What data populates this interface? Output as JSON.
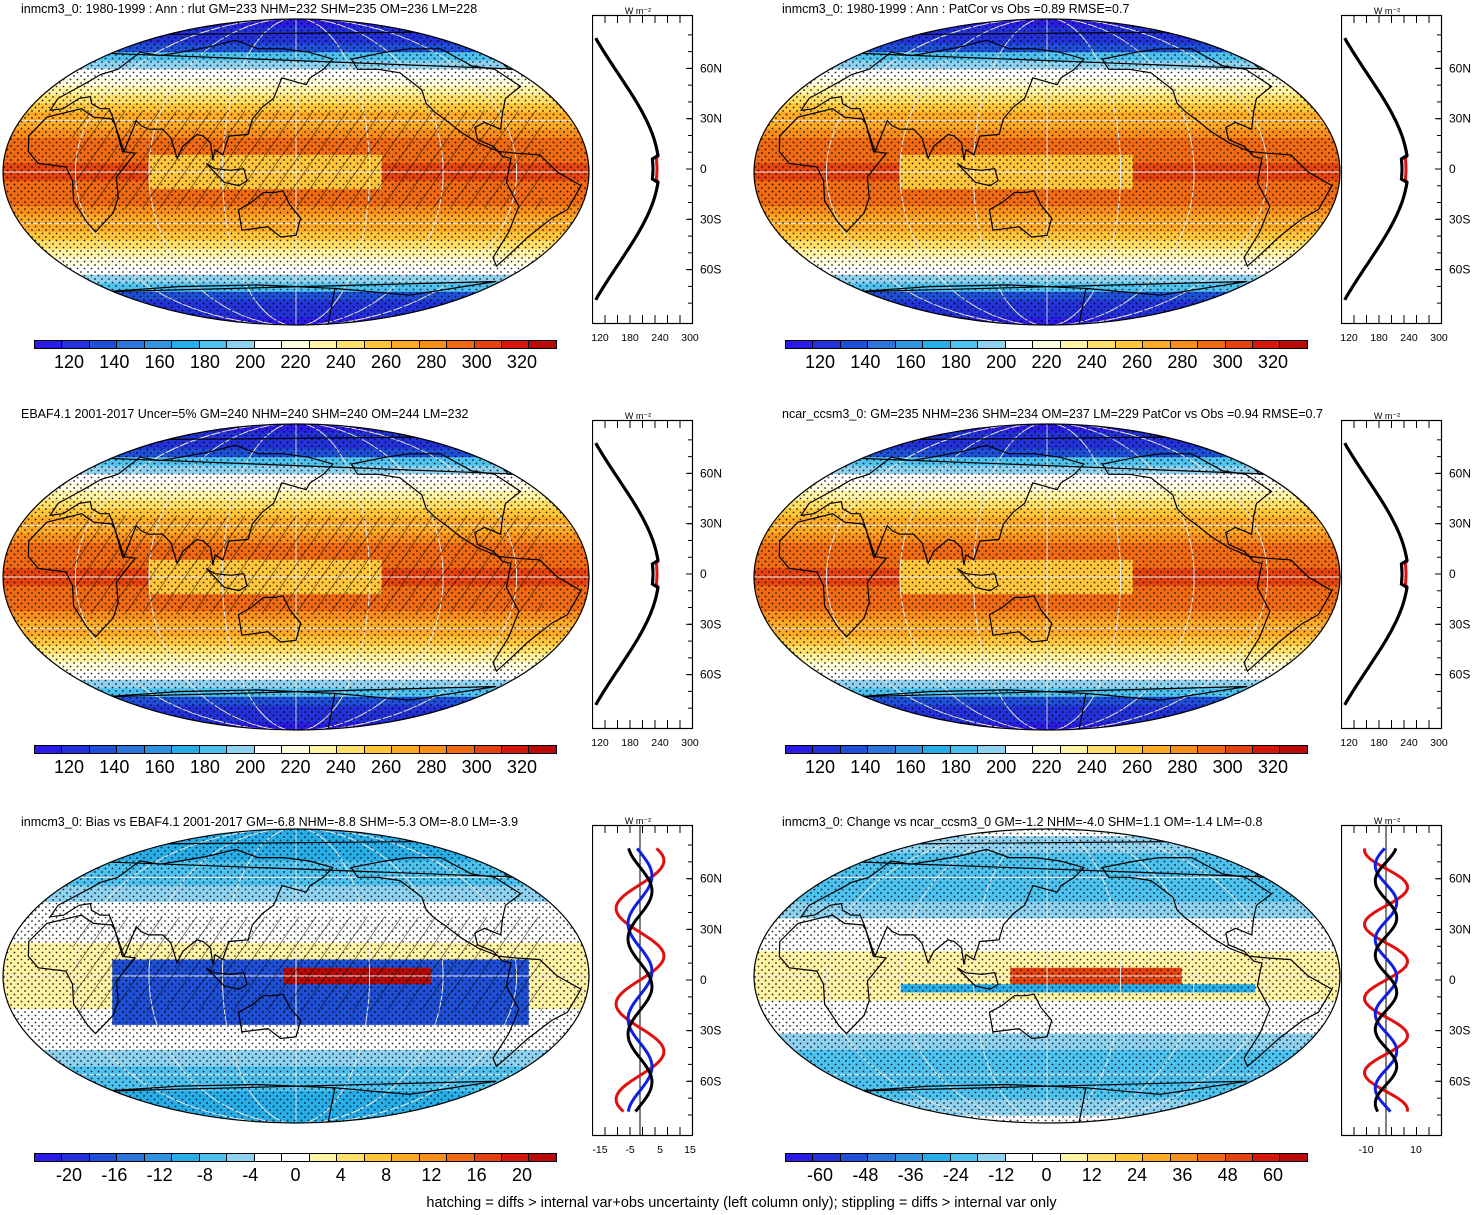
{
  "footer": "hatching = diffs > internal var+obs uncertainty (left column only); stippling = diffs > internal var only",
  "zonal_lat_labels": [
    "60N",
    "30N",
    "0",
    "30S",
    "60S"
  ],
  "zonal_unit": "W m⁻²",
  "colors": {
    "abs_scale": [
      "#2a1be6",
      "#2331d9",
      "#1f4fd6",
      "#2a74dc",
      "#2f93e0",
      "#27aee8",
      "#4ec2ee",
      "#8ed2ef",
      "#ffffff",
      "#fffde0",
      "#fff3a6",
      "#ffe06b",
      "#ffc63c",
      "#fdab27",
      "#f88e1c",
      "#ef6a12",
      "#e4420e",
      "#d5180b",
      "#b90a0a"
    ],
    "diff_scale": [
      "#2a1be6",
      "#2331d9",
      "#1f4fd6",
      "#2a74dc",
      "#2f93e0",
      "#27aee8",
      "#4ec2ee",
      "#8ed2ef",
      "#ffffff",
      "#ffffff",
      "#fff3a6",
      "#ffe06b",
      "#ffc63c",
      "#fdab27",
      "#f88e1c",
      "#ef6a12",
      "#e4420e",
      "#d5180b",
      "#b90a0a"
    ],
    "line_model": "#e01010",
    "line_obs": "#1020e0",
    "line_mean": "#000000"
  },
  "panels": [
    {
      "title": "inmcm3_0: 1980-1999 : Ann : rlut GM=233 NHM=232 SHM=235 OM=236 LM=228",
      "kind": "abs",
      "cbar_labels": [
        "120",
        "140",
        "160",
        "180",
        "200",
        "220",
        "240",
        "260",
        "280",
        "300",
        "320"
      ],
      "zonal_ticks": [
        "120",
        "180",
        "240",
        "300"
      ],
      "hatch": true
    },
    {
      "title": "inmcm3_0: 1980-1999 : Ann : PatCor vs Obs =0.89 RMSE=0.7",
      "kind": "abs",
      "cbar_labels": [
        "120",
        "140",
        "160",
        "180",
        "200",
        "220",
        "240",
        "260",
        "280",
        "300",
        "320"
      ],
      "zonal_ticks": [
        "120",
        "180",
        "240",
        "300"
      ],
      "hatch": false
    },
    {
      "title": "EBAF4.1 2001-2017 Uncer=5% GM=240 NHM=240 SHM=240 OM=244 LM=232",
      "kind": "abs",
      "cbar_labels": [
        "120",
        "140",
        "160",
        "180",
        "200",
        "220",
        "240",
        "260",
        "280",
        "300",
        "320"
      ],
      "zonal_ticks": [
        "120",
        "180",
        "240",
        "300"
      ],
      "hatch": true
    },
    {
      "title": "ncar_ccsm3_0: GM=235 NHM=236 SHM=234 OM=237 LM=229 PatCor vs Obs =0.94 RMSE=0.7",
      "kind": "abs",
      "cbar_labels": [
        "120",
        "140",
        "160",
        "180",
        "200",
        "220",
        "240",
        "260",
        "280",
        "300",
        "320"
      ],
      "zonal_ticks": [
        "120",
        "180",
        "240",
        "300"
      ],
      "hatch": false
    },
    {
      "title": "inmcm3_0: Bias vs EBAF4.1 2001-2017 GM=-6.8 NHM=-8.8 SHM=-5.3 OM=-8.0 LM=-3.9",
      "kind": "bias",
      "cbar_labels": [
        "-20",
        "-16",
        "-12",
        "-8",
        "-4",
        "0",
        "4",
        "8",
        "12",
        "16",
        "20"
      ],
      "zonal_ticks": [
        "-15",
        "-5",
        "5",
        "15"
      ],
      "hatch": true
    },
    {
      "title": "inmcm3_0: Change vs ncar_ccsm3_0 GM=-1.2 NHM=-4.0 SHM=1.1 OM=-1.4 LM=-0.8",
      "kind": "change",
      "cbar_labels": [
        "-60",
        "-48",
        "-36",
        "-24",
        "-12",
        "0",
        "12",
        "24",
        "36",
        "48",
        "60"
      ],
      "zonal_ticks": [
        "-10",
        "10"
      ],
      "hatch": false
    }
  ]
}
